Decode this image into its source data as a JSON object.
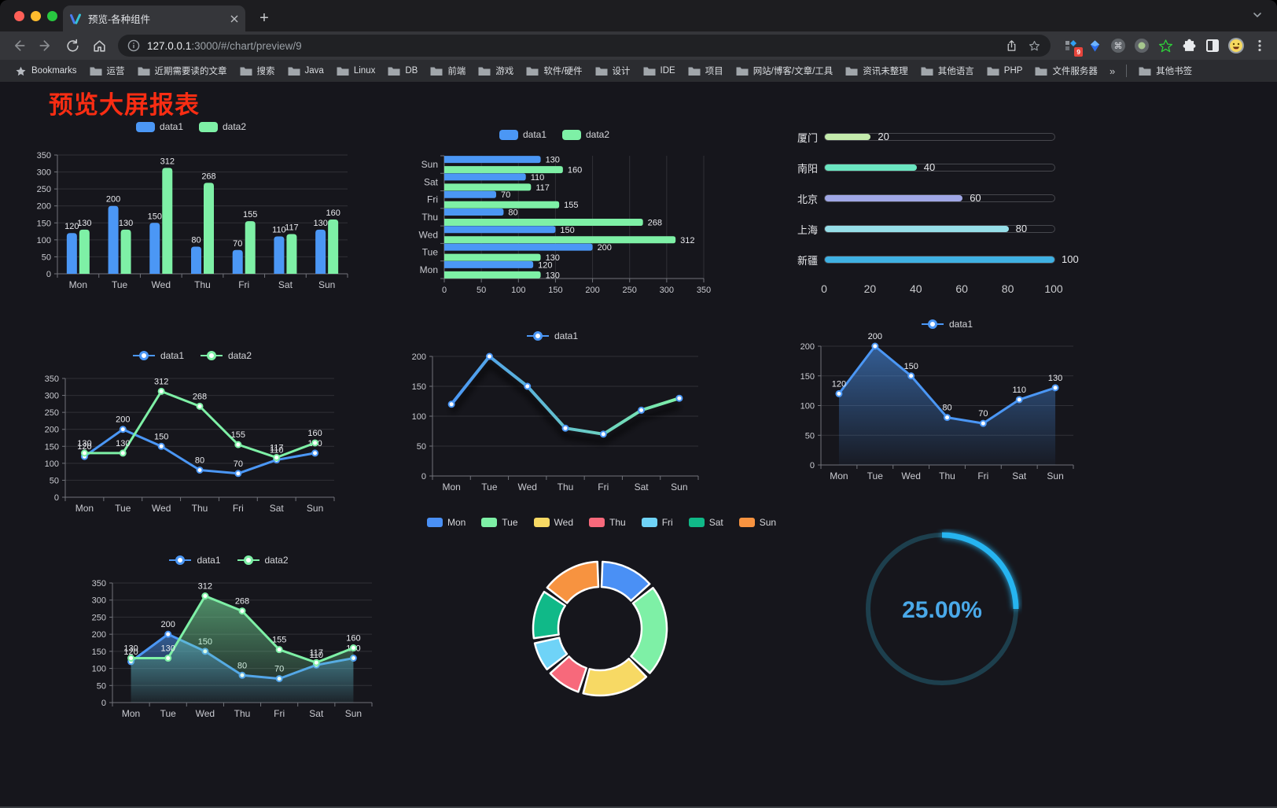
{
  "browser": {
    "tab": {
      "title": "预览-各种组件"
    },
    "url": {
      "host": "127.0.0.1",
      "rest": ":3000/#/chart/preview/9"
    },
    "bookmarks_label": "Bookmarks",
    "bookmark_folders": [
      "运营",
      "近期需要读的文章",
      "搜索",
      "Java",
      "Linux",
      "DB",
      "前端",
      "游戏",
      "软件/硬件",
      "设计",
      "IDE",
      "项目",
      "网站/博客/文章/工具",
      "资讯未整理",
      "其他语言",
      "PHP",
      "文件服务器"
    ],
    "overflow_label": "»",
    "other_bookmarks": "其他书签",
    "extension_badge": "9"
  },
  "page": {
    "title": "预览大屏报表"
  },
  "chart_data": [
    {
      "id": "bar-grouped",
      "type": "bar",
      "categories": [
        "Mon",
        "Tue",
        "Wed",
        "Thu",
        "Fri",
        "Sat",
        "Sun"
      ],
      "series": [
        {
          "name": "data1",
          "color": "#4b97f5",
          "values": [
            120,
            200,
            150,
            80,
            70,
            110,
            130
          ]
        },
        {
          "name": "data2",
          "color": "#7ef0a6",
          "values": [
            130,
            130,
            312,
            268,
            155,
            117,
            160
          ]
        }
      ],
      "ylim": [
        0,
        350
      ],
      "ystep": 50,
      "yticks": [
        0,
        50,
        100,
        150,
        200,
        250,
        300,
        350
      ],
      "value_labels": true,
      "grid": true,
      "legend_position": "top"
    },
    {
      "id": "bar-horizontal",
      "type": "hbar",
      "categories_top_to_bottom": [
        "Sun",
        "Sat",
        "Fri",
        "Thu",
        "Wed",
        "Tue",
        "Mon"
      ],
      "series": [
        {
          "name": "data1",
          "color": "#4b97f5",
          "values": [
            130,
            110,
            70,
            80,
            150,
            200,
            120
          ]
        },
        {
          "name": "data2",
          "color": "#7ef0a6",
          "values": [
            160,
            117,
            155,
            268,
            312,
            130,
            130
          ]
        }
      ],
      "xlim": [
        0,
        350
      ],
      "xstep": 50,
      "xticks": [
        0,
        50,
        100,
        150,
        200,
        250,
        300,
        350
      ],
      "value_labels": true,
      "grid": true,
      "legend_position": "top"
    },
    {
      "id": "progress-bars",
      "type": "progress",
      "max": 100,
      "axis_ticks": [
        0,
        20,
        40,
        60,
        80,
        100
      ],
      "items": [
        {
          "label": "厦门",
          "value": 20,
          "color": "#c4ebad"
        },
        {
          "label": "南阳",
          "value": 40,
          "color": "#6be6c1"
        },
        {
          "label": "北京",
          "value": 60,
          "color": "#a0a7e6"
        },
        {
          "label": "上海",
          "value": 80,
          "color": "#96dee8"
        },
        {
          "label": "新疆",
          "value": 100,
          "color": "#3fb1e3"
        }
      ]
    },
    {
      "id": "line-two-series",
      "type": "line",
      "categories": [
        "Mon",
        "Tue",
        "Wed",
        "Thu",
        "Fri",
        "Sat",
        "Sun"
      ],
      "series": [
        {
          "name": "data1",
          "color": "#4b97f5",
          "values": [
            120,
            200,
            150,
            80,
            70,
            110,
            130
          ]
        },
        {
          "name": "data2",
          "color": "#7ef0a6",
          "values": [
            130,
            130,
            312,
            268,
            155,
            117,
            160
          ]
        }
      ],
      "ylim": [
        0,
        350
      ],
      "ystep": 50,
      "yticks": [
        0,
        50,
        100,
        150,
        200,
        250,
        300,
        350
      ],
      "value_labels": true,
      "grid": true,
      "legend_position": "top"
    },
    {
      "id": "line-gradient",
      "type": "line",
      "categories": [
        "Mon",
        "Tue",
        "Wed",
        "Thu",
        "Fri",
        "Sat",
        "Sun"
      ],
      "series": [
        {
          "name": "data1",
          "color": "#4b97f5",
          "gradient": [
            "#4b97f5",
            "#7ef0a6"
          ],
          "values": [
            120,
            200,
            150,
            80,
            70,
            110,
            130
          ]
        }
      ],
      "ylim": [
        0,
        200
      ],
      "ystep": 50,
      "yticks": [
        0,
        50,
        100,
        150,
        200
      ],
      "value_labels": false,
      "shadow": true,
      "grid": true,
      "legend_position": "top"
    },
    {
      "id": "area-single",
      "type": "line",
      "categories": [
        "Mon",
        "Tue",
        "Wed",
        "Thu",
        "Fri",
        "Sat",
        "Sun"
      ],
      "series": [
        {
          "name": "data1",
          "color": "#4b97f5",
          "area": true,
          "values": [
            120,
            200,
            150,
            80,
            70,
            110,
            130
          ]
        }
      ],
      "ylim": [
        0,
        200
      ],
      "ystep": 50,
      "yticks": [
        0,
        50,
        100,
        150,
        200
      ],
      "value_labels": true,
      "grid": true,
      "legend_position": "top"
    },
    {
      "id": "area-two-series",
      "type": "line",
      "categories": [
        "Mon",
        "Tue",
        "Wed",
        "Thu",
        "Fri",
        "Sat",
        "Sun"
      ],
      "series": [
        {
          "name": "data1",
          "color": "#4b97f5",
          "area": true,
          "values": [
            120,
            200,
            150,
            80,
            70,
            110,
            130
          ]
        },
        {
          "name": "data2",
          "color": "#7ef0a6",
          "area": true,
          "values": [
            130,
            130,
            312,
            268,
            155,
            117,
            160
          ]
        }
      ],
      "ylim": [
        0,
        350
      ],
      "ystep": 50,
      "yticks": [
        0,
        50,
        100,
        150,
        200,
        250,
        300,
        350
      ],
      "value_labels": true,
      "grid": true,
      "legend_position": "top"
    },
    {
      "id": "donut",
      "type": "pie",
      "legend_position": "top",
      "items": [
        {
          "label": "Mon",
          "value": 120,
          "color": "#4a90f5"
        },
        {
          "label": "Tue",
          "value": 200,
          "color": "#7ef0a6"
        },
        {
          "label": "Wed",
          "value": 150,
          "color": "#f7d964"
        },
        {
          "label": "Thu",
          "value": 80,
          "color": "#f7697b"
        },
        {
          "label": "Fri",
          "value": 70,
          "color": "#6fd3f7"
        },
        {
          "label": "Sat",
          "value": 110,
          "color": "#10b988"
        },
        {
          "label": "Sun",
          "value": 130,
          "color": "#f79340"
        }
      ]
    },
    {
      "id": "gauge",
      "type": "gauge",
      "value": 25,
      "max": 100,
      "display": "25.00%",
      "arc_color": "#28b4f0",
      "track_color": "#1d3f4d",
      "text_color": "#4aa9e9"
    }
  ]
}
